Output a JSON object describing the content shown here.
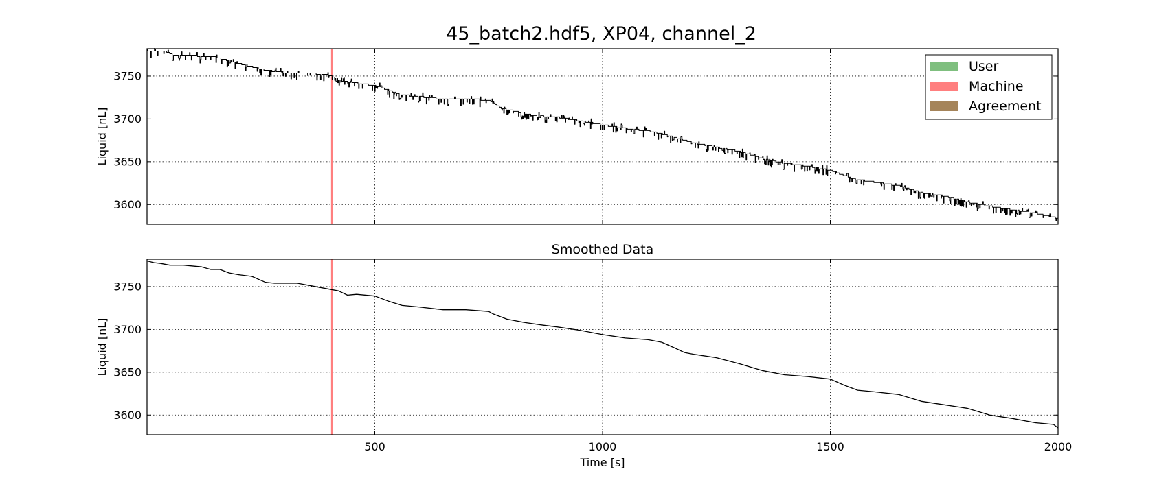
{
  "title": "45_batch2.hdf5, XP04, channel_2",
  "colors": {
    "user": "#7fbf7f",
    "machine": "#ff7f7f",
    "agreement": "#a5845a",
    "line": "#000000",
    "grid": "#000000"
  },
  "chart_data": [
    {
      "type": "line",
      "title": "",
      "xlabel": "",
      "ylabel": "Liquid [nL]",
      "xlim": [
        0,
        2000
      ],
      "ylim": [
        3577,
        3782
      ],
      "xticks": [
        500,
        1000,
        1500,
        2000
      ],
      "yticks": [
        3600,
        3650,
        3700,
        3750
      ],
      "show_xtick_labels": false,
      "grid": true,
      "legend": {
        "placement": "top-right",
        "entries": [
          {
            "label": "User",
            "color_key": "user"
          },
          {
            "label": "Machine",
            "color_key": "machine"
          },
          {
            "label": "Agreement",
            "color_key": "agreement"
          }
        ]
      },
      "spans": [
        {
          "label": "Machine",
          "x_start": 404,
          "x_end": 408
        }
      ],
      "noise": true,
      "series": [
        {
          "x": [
            0,
            40,
            60,
            100,
            150,
            200,
            260,
            300,
            350,
            400,
            430,
            470,
            500,
            560,
            600,
            650,
            700,
            750,
            780,
            800,
            850,
            900,
            960,
            1000,
            1050,
            1100,
            1150,
            1200,
            1250,
            1300,
            1350,
            1400,
            1450,
            1500,
            1550,
            1600,
            1650,
            1700,
            1750,
            1800,
            1850,
            1900,
            1950,
            2000
          ],
          "y": [
            3780,
            3779,
            3774,
            3774,
            3772,
            3765,
            3757,
            3754,
            3754,
            3751,
            3744,
            3741,
            3739,
            3728,
            3726,
            3723,
            3723,
            3722,
            3712,
            3710,
            3704,
            3702,
            3697,
            3693,
            3689,
            3686,
            3680,
            3672,
            3667,
            3662,
            3654,
            3648,
            3645,
            3640,
            3630,
            3626,
            3622,
            3614,
            3610,
            3603,
            3598,
            3594,
            3590,
            3584
          ]
        }
      ]
    },
    {
      "type": "line",
      "title": "Smoothed Data",
      "xlabel": "Time [s]",
      "ylabel": "Liquid [nL]",
      "xlim": [
        0,
        2000
      ],
      "ylim": [
        3577,
        3782
      ],
      "xticks": [
        500,
        1000,
        1500,
        2000
      ],
      "yticks": [
        3600,
        3650,
        3700,
        3750
      ],
      "show_xtick_labels": true,
      "grid": true,
      "spans": [
        {
          "label": "Machine",
          "x_start": 404,
          "x_end": 408
        }
      ],
      "noise": false,
      "series": [
        {
          "x": [
            0,
            15,
            30,
            50,
            80,
            120,
            140,
            160,
            180,
            200,
            230,
            260,
            280,
            300,
            330,
            360,
            380,
            400,
            420,
            440,
            460,
            500,
            530,
            560,
            600,
            650,
            700,
            750,
            760,
            790,
            830,
            870,
            900,
            950,
            1000,
            1050,
            1100,
            1130,
            1160,
            1180,
            1200,
            1250,
            1300,
            1350,
            1400,
            1450,
            1500,
            1530,
            1560,
            1600,
            1650,
            1700,
            1750,
            1800,
            1850,
            1900,
            1950,
            1990,
            2000
          ],
          "y": [
            3780,
            3778,
            3777,
            3775,
            3775,
            3773,
            3770,
            3770,
            3766,
            3764,
            3762,
            3755,
            3754,
            3754,
            3754,
            3751,
            3749,
            3747,
            3745,
            3740,
            3741,
            3739,
            3733,
            3728,
            3726,
            3723,
            3723,
            3721,
            3718,
            3712,
            3708,
            3705,
            3703,
            3699,
            3694,
            3690,
            3688,
            3685,
            3678,
            3673,
            3671,
            3667,
            3660,
            3652,
            3647,
            3645,
            3642,
            3635,
            3629,
            3627,
            3624,
            3616,
            3612,
            3608,
            3600,
            3596,
            3591,
            3589,
            3585
          ]
        }
      ]
    }
  ]
}
